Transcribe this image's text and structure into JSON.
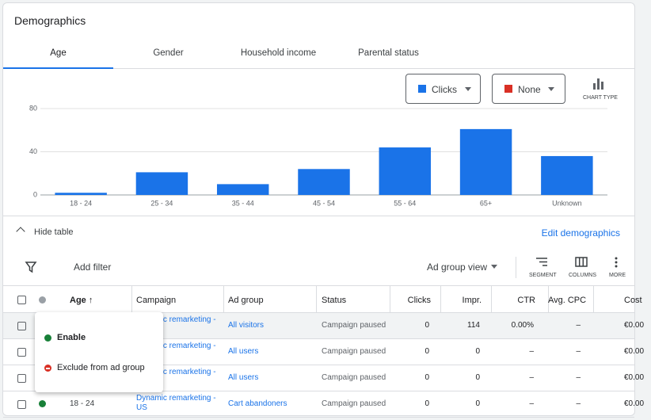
{
  "header": {
    "title": "Demographics"
  },
  "tabs": [
    "Age",
    "Gender",
    "Household income",
    "Parental status"
  ],
  "controls": {
    "metric1": "Clicks",
    "metric2": "None",
    "chart_type": "CHART TYPE"
  },
  "chart_data": {
    "type": "bar",
    "categories": [
      "18 - 24",
      "25 - 34",
      "35 - 44",
      "45 - 54",
      "55 - 64",
      "65+",
      "Unknown"
    ],
    "values": [
      2,
      21,
      10,
      24,
      44,
      61,
      36
    ],
    "color": "#1a73e8",
    "ylim": [
      0,
      80
    ],
    "yticks": [
      0,
      40,
      80
    ],
    "grid": true
  },
  "table_bar": {
    "hide_table": "Hide table",
    "edit": "Edit demographics",
    "add_filter": "Add filter",
    "view": "Ad group view",
    "segment": "SEGMENT",
    "columns": "COLUMNS",
    "more": "MORE"
  },
  "table": {
    "columns": [
      "Age",
      "Campaign",
      "Ad group",
      "Status",
      "Clicks",
      "Impr.",
      "CTR",
      "Avg. CPC",
      "Cost"
    ],
    "rows": [
      {
        "cells": [
          "Dynamic remarketing - US",
          "All visitors",
          "Campaign paused",
          0,
          114,
          "0.00%",
          "–",
          "€0.00"
        ]
      },
      {
        "cells": [
          "Dynamic remarketing - US",
          "All users",
          "Campaign paused",
          0,
          0,
          "–",
          "–",
          "€0.00"
        ]
      },
      {
        "cells": [
          "Dynamic remarketing - US",
          "All users",
          "Campaign paused",
          0,
          0,
          "–",
          "–",
          "€0.00"
        ]
      },
      {
        "age": "18 - 24",
        "cells": [
          "Dynamic remarketing - US",
          "Cart abandoners",
          "Campaign paused",
          0,
          0,
          "–",
          "–",
          "€0.00"
        ]
      }
    ]
  },
  "popup": {
    "items": [
      "Enable",
      "Exclude from ad group"
    ]
  }
}
